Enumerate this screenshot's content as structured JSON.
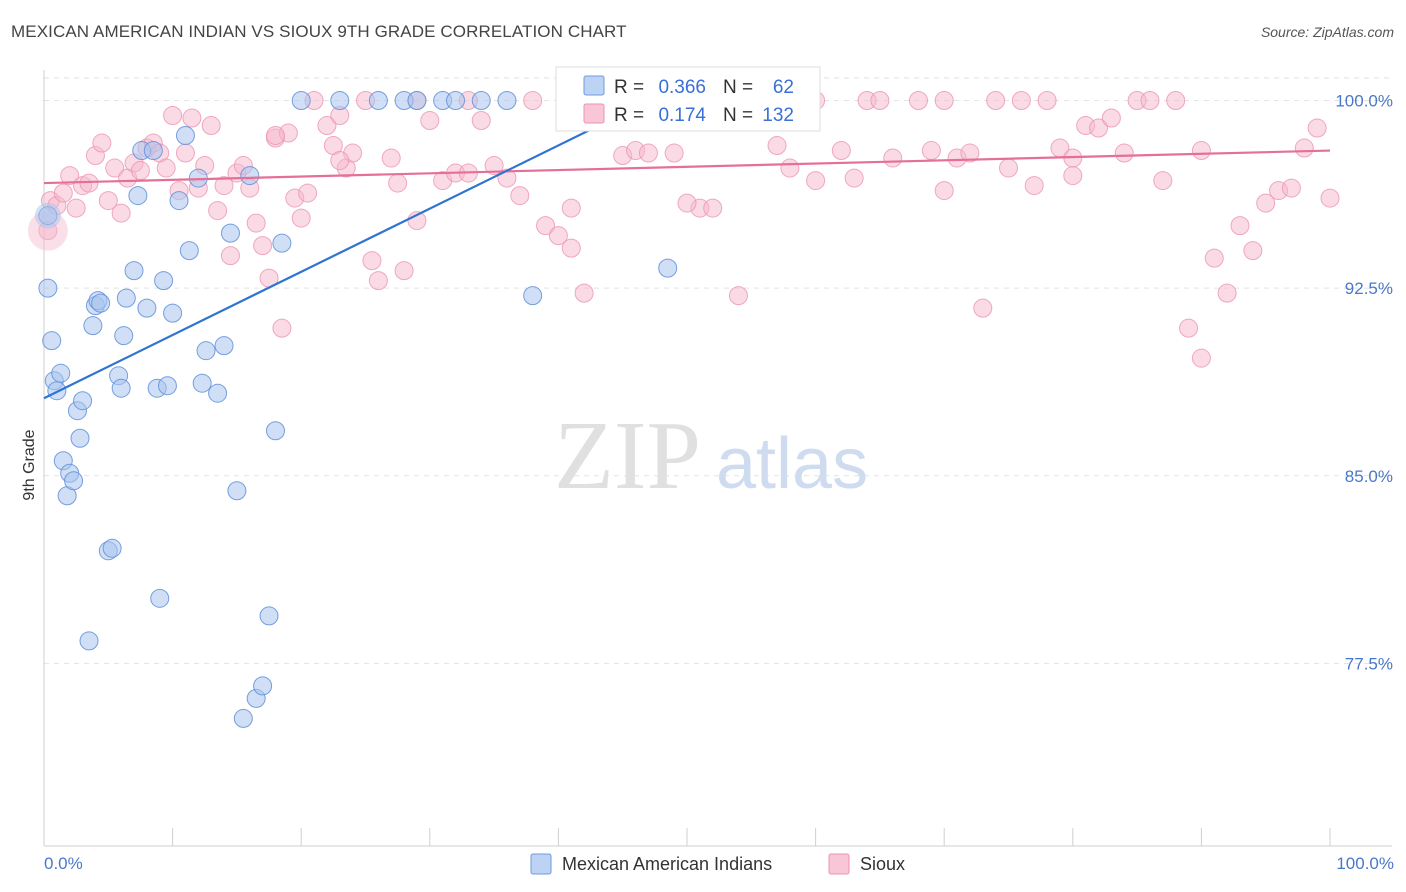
{
  "header": {
    "title": "MEXICAN AMERICAN INDIAN VS SIOUX 9TH GRADE CORRELATION CHART",
    "source": "Source: ZipAtlas.com"
  },
  "watermark": {
    "zip": "ZIP",
    "atlas": "atlas"
  },
  "legend": {
    "series1": {
      "r_label": "R =",
      "r_value": "0.366",
      "n_label": "N =",
      "n_value": "62"
    },
    "series2": {
      "r_label": "R =",
      "r_value": "0.174",
      "n_label": "N =",
      "n_value": "132"
    }
  },
  "chart_data": {
    "type": "scatter",
    "title": "MEXICAN AMERICAN INDIAN VS SIOUX 9TH GRADE CORRELATION CHART",
    "xlabel": "",
    "ylabel": "9th Grade",
    "xlim": [
      0,
      100
    ],
    "ylim": [
      70.2,
      100.9
    ],
    "x_tick_labels": [
      "0.0%",
      "100.0%"
    ],
    "y_ticks": [
      77.5,
      85.0,
      92.5,
      100.0
    ],
    "y_tick_labels": [
      "77.5%",
      "85.0%",
      "92.5%",
      "100.0%"
    ],
    "grid": true,
    "colors": {
      "Mexican American Indians": "#6f9be0",
      "Sioux": "#ec93b1",
      "trend1": "#2f74d0",
      "trend2": "#e46f98"
    },
    "series": [
      {
        "name": "Mexican American Indians",
        "r": 0.366,
        "n": 62,
        "trend": {
          "x": [
            0,
            47.5
          ],
          "y": [
            88.1,
            100.1
          ]
        },
        "x": [
          0.3,
          0.3,
          0.6,
          0.8,
          1.0,
          1.3,
          1.5,
          1.8,
          2.0,
          2.3,
          2.6,
          2.8,
          3.0,
          3.5,
          3.8,
          4.0,
          4.2,
          4.4,
          5.0,
          5.3,
          5.8,
          6.0,
          6.2,
          6.4,
          7.0,
          7.3,
          7.6,
          8.0,
          8.5,
          8.8,
          9.0,
          9.3,
          9.6,
          10.0,
          10.5,
          11.0,
          11.3,
          12.0,
          12.3,
          12.6,
          13.5,
          14.0,
          14.5,
          15.0,
          15.5,
          16.0,
          16.5,
          17.0,
          17.5,
          18.0,
          18.5,
          20.0,
          23.0,
          26.0,
          28.0,
          29.0,
          31.0,
          32.0,
          34.0,
          36.0,
          38.0,
          48.5
        ],
        "y": [
          95.4,
          92.5,
          90.4,
          88.8,
          88.4,
          89.1,
          85.6,
          84.2,
          85.1,
          84.8,
          87.6,
          86.5,
          88.0,
          78.4,
          91.0,
          91.8,
          92.0,
          91.9,
          82.0,
          82.1,
          89.0,
          88.5,
          90.6,
          92.1,
          93.2,
          96.2,
          98.0,
          91.7,
          98.0,
          88.5,
          80.1,
          92.8,
          88.6,
          91.5,
          96.0,
          98.6,
          94.0,
          96.9,
          88.7,
          90.0,
          88.3,
          90.2,
          94.7,
          84.4,
          75.3,
          97.0,
          76.1,
          76.6,
          79.4,
          86.8,
          94.3,
          100.0,
          100.0,
          100.0,
          100.0,
          100.0,
          100.0,
          100.0,
          100.0,
          100.0,
          92.2,
          93.3
        ]
      },
      {
        "name": "Sioux",
        "r": 0.174,
        "n": 132,
        "trend": {
          "x": [
            0,
            100
          ],
          "y": [
            96.7,
            98.0
          ]
        },
        "x": [
          0.3,
          0.5,
          1.0,
          1.5,
          2.0,
          2.5,
          3.0,
          3.5,
          4.0,
          4.5,
          5.0,
          5.5,
          6.0,
          6.5,
          7.0,
          7.5,
          8.0,
          8.5,
          9.0,
          9.5,
          10.0,
          10.5,
          11.0,
          11.5,
          12.0,
          12.5,
          13.0,
          13.5,
          14.0,
          14.5,
          15.0,
          15.5,
          16.0,
          16.5,
          17.0,
          17.5,
          18.0,
          18.5,
          19.0,
          19.5,
          20.0,
          20.5,
          21.0,
          22.0,
          22.5,
          23.0,
          23.5,
          24.0,
          25.0,
          25.5,
          26.0,
          27.0,
          27.5,
          28.0,
          29.0,
          30.0,
          31.0,
          32.0,
          33.0,
          34.0,
          35.0,
          36.0,
          37.0,
          38.0,
          39.0,
          40.0,
          41.0,
          42.0,
          43.0,
          44.0,
          45.0,
          46.0,
          47.0,
          48.0,
          49.0,
          50.0,
          51.0,
          52.0,
          53.0,
          54.0,
          55.0,
          57.0,
          58.0,
          60.0,
          62.0,
          63.0,
          64.0,
          65.0,
          66.0,
          68.0,
          69.0,
          70.0,
          71.0,
          72.0,
          73.0,
          74.0,
          75.0,
          76.0,
          77.0,
          78.0,
          79.0,
          80.0,
          81.0,
          82.0,
          83.0,
          84.0,
          85.0,
          86.0,
          87.0,
          88.0,
          89.0,
          90.0,
          91.0,
          92.0,
          93.0,
          94.0,
          95.0,
          96.0,
          97.0,
          98.0,
          99.0,
          100.0,
          18.0,
          23.0,
          29.0,
          33.0,
          41.0,
          50.0,
          60.0,
          70.0,
          80.0,
          90.0
        ],
        "y": [
          94.8,
          96.0,
          95.8,
          96.3,
          97.0,
          95.7,
          96.6,
          96.7,
          97.8,
          98.3,
          96.0,
          97.3,
          95.5,
          96.9,
          97.5,
          97.2,
          98.1,
          98.3,
          97.9,
          97.3,
          99.4,
          96.4,
          97.9,
          99.3,
          96.5,
          97.4,
          99.0,
          95.6,
          96.6,
          93.8,
          97.1,
          97.4,
          96.5,
          95.1,
          94.2,
          92.9,
          98.5,
          90.9,
          98.7,
          96.1,
          95.3,
          96.3,
          100.0,
          99.0,
          98.2,
          99.4,
          97.3,
          97.9,
          100.0,
          93.6,
          92.8,
          97.7,
          96.7,
          93.2,
          100.0,
          99.2,
          96.8,
          97.1,
          100.0,
          99.2,
          97.4,
          96.9,
          96.2,
          100.0,
          95.0,
          94.6,
          95.7,
          92.3,
          100.0,
          100.0,
          97.8,
          98.0,
          97.9,
          100.0,
          97.9,
          100.0,
          95.7,
          95.7,
          100.0,
          92.2,
          100.0,
          98.2,
          97.3,
          100.0,
          98.0,
          96.9,
          100.0,
          100.0,
          97.7,
          100.0,
          98.0,
          100.0,
          97.7,
          97.9,
          91.7,
          100.0,
          97.3,
          100.0,
          96.6,
          100.0,
          98.1,
          97.7,
          99.0,
          98.9,
          99.3,
          97.9,
          100.0,
          100.0,
          96.8,
          100.0,
          90.9,
          89.7,
          93.7,
          92.3,
          95.0,
          94.0,
          95.9,
          96.4,
          96.5,
          98.1,
          98.9,
          96.1,
          98.6,
          97.6,
          95.2,
          97.1,
          94.1,
          95.9,
          96.8,
          96.4,
          97.0,
          98.0
        ]
      }
    ]
  },
  "bottom_legend": {
    "series1": "Mexican American Indians",
    "series2": "Sioux"
  }
}
